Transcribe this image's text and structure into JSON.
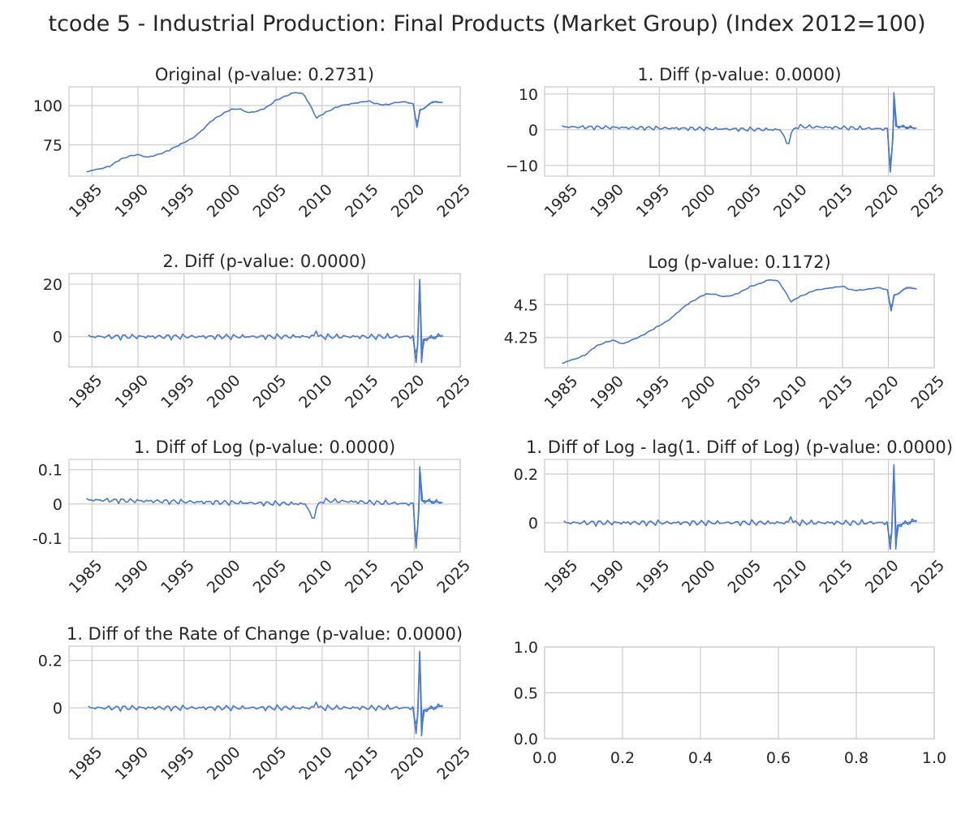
{
  "figure": {
    "title": "tcode 5 - Industrial Production: Final Products (Market Group) (Index 2012=100)",
    "line_color": "#4878cf",
    "grid_color": "#cccccc",
    "spine_color": "#cccccc"
  },
  "chart_data": [
    {
      "type": "line",
      "title": "Original (p-value: 0.2731)",
      "x_start": 1984.4,
      "x_end": 2023.1,
      "xlim": [
        1982.5,
        2025.0
      ],
      "ylim": [
        55,
        112
      ],
      "xticks": [
        1985,
        1990,
        1995,
        2000,
        2005,
        2010,
        2015,
        2020,
        2025
      ],
      "yticks": [
        75,
        100
      ],
      "keypoints": [
        [
          1984.4,
          57.5
        ],
        [
          1985.0,
          58.8
        ],
        [
          1986.0,
          59.8
        ],
        [
          1987.0,
          61.5
        ],
        [
          1988.0,
          65.5
        ],
        [
          1989.0,
          67.7
        ],
        [
          1990.0,
          68.8
        ],
        [
          1991.0,
          67.0
        ],
        [
          1992.0,
          68.5
        ],
        [
          1993.0,
          70.5
        ],
        [
          1994.0,
          73.5
        ],
        [
          1995.0,
          76.5
        ],
        [
          1996.0,
          79.5
        ],
        [
          1997.0,
          84.5
        ],
        [
          1998.0,
          90.5
        ],
        [
          1999.0,
          94.0
        ],
        [
          2000.0,
          97.5
        ],
        [
          2001.0,
          98.0
        ],
        [
          2002.0,
          95.5
        ],
        [
          2003.0,
          96.5
        ],
        [
          2004.0,
          99.0
        ],
        [
          2005.0,
          103.5
        ],
        [
          2006.0,
          106.0
        ],
        [
          2007.0,
          108.5
        ],
        [
          2008.0,
          107.5
        ],
        [
          2008.9,
          98.0
        ],
        [
          2009.4,
          92.0
        ],
        [
          2010.0,
          94.5
        ],
        [
          2011.0,
          97.5
        ],
        [
          2012.0,
          100.0
        ],
        [
          2013.0,
          101.0
        ],
        [
          2014.0,
          102.0
        ],
        [
          2015.0,
          103.0
        ],
        [
          2016.0,
          101.0
        ],
        [
          2017.0,
          100.5
        ],
        [
          2018.0,
          102.0
        ],
        [
          2019.0,
          102.5
        ],
        [
          2019.9,
          101.0
        ],
        [
          2020.3,
          86.0
        ],
        [
          2020.6,
          97.0
        ],
        [
          2021.0,
          98.0
        ],
        [
          2022.0,
          102.5
        ],
        [
          2023.1,
          102.0
        ]
      ],
      "noise": 0.4
    },
    {
      "type": "line",
      "title": "1. Diff (p-value: 0.0000)",
      "x_start": 1984.4,
      "x_end": 2023.1,
      "xlim": [
        1982.5,
        2025.0
      ],
      "ylim": [
        -13,
        12
      ],
      "xticks": [
        1985,
        1990,
        1995,
        2000,
        2005,
        2010,
        2015,
        2020,
        2025
      ],
      "yticks": [
        -10,
        0,
        10
      ],
      "keypoints": [
        [
          1984.4,
          0.8
        ],
        [
          2008.3,
          0.0
        ],
        [
          2008.7,
          -2.5
        ],
        [
          2009.0,
          -4.8
        ],
        [
          2009.4,
          -1.0
        ],
        [
          2010.0,
          0.9
        ],
        [
          2019.9,
          0.2
        ],
        [
          2020.2,
          -12.0
        ],
        [
          2020.5,
          -2.0
        ],
        [
          2020.6,
          10.5
        ],
        [
          2020.8,
          1.0
        ],
        [
          2023.1,
          0.4
        ]
      ],
      "noise": 0.55
    },
    {
      "type": "line",
      "title": "2. Diff (p-value: 0.0000)",
      "x_start": 1984.6,
      "x_end": 2023.1,
      "xlim": [
        1982.5,
        2025.0
      ],
      "ylim": [
        -11.5,
        24
      ],
      "xticks": [
        1985,
        1990,
        1995,
        2000,
        2005,
        2010,
        2015,
        2020,
        2025
      ],
      "yticks": [
        0,
        20
      ],
      "keypoints": [
        [
          1984.6,
          0.0
        ],
        [
          2009.2,
          0.0
        ],
        [
          2009.4,
          4.0
        ],
        [
          2009.6,
          0.0
        ],
        [
          2019.9,
          0.0
        ],
        [
          2020.2,
          -10.0
        ],
        [
          2020.4,
          -2.0
        ],
        [
          2020.6,
          22.0
        ],
        [
          2020.8,
          -10.0
        ],
        [
          2021.0,
          -1.0
        ],
        [
          2023.1,
          0.5
        ]
      ],
      "noise": 1.0
    },
    {
      "type": "line",
      "title": "Log (p-value: 0.1172)",
      "x_start": 1984.4,
      "x_end": 2023.1,
      "xlim": [
        1982.5,
        2025.0
      ],
      "ylim": [
        4.02,
        4.73
      ],
      "xticks": [
        1985,
        1990,
        1995,
        2000,
        2005,
        2010,
        2015,
        2020,
        2025
      ],
      "yticks": [
        4.25,
        4.5
      ],
      "keypoints": [
        [
          1984.4,
          4.05
        ],
        [
          1985.0,
          4.07
        ],
        [
          1986.0,
          4.09
        ],
        [
          1987.0,
          4.12
        ],
        [
          1988.0,
          4.18
        ],
        [
          1989.0,
          4.21
        ],
        [
          1990.0,
          4.23
        ],
        [
          1991.0,
          4.2
        ],
        [
          1992.0,
          4.23
        ],
        [
          1993.0,
          4.26
        ],
        [
          1994.0,
          4.3
        ],
        [
          1995.0,
          4.34
        ],
        [
          1996.0,
          4.38
        ],
        [
          1997.0,
          4.44
        ],
        [
          1998.0,
          4.5
        ],
        [
          1999.0,
          4.54
        ],
        [
          2000.0,
          4.58
        ],
        [
          2001.0,
          4.58
        ],
        [
          2002.0,
          4.56
        ],
        [
          2003.0,
          4.57
        ],
        [
          2004.0,
          4.6
        ],
        [
          2005.0,
          4.64
        ],
        [
          2006.0,
          4.66
        ],
        [
          2007.0,
          4.69
        ],
        [
          2008.0,
          4.68
        ],
        [
          2008.9,
          4.58
        ],
        [
          2009.4,
          4.52
        ],
        [
          2010.0,
          4.55
        ],
        [
          2011.0,
          4.58
        ],
        [
          2012.0,
          4.61
        ],
        [
          2013.0,
          4.62
        ],
        [
          2014.0,
          4.63
        ],
        [
          2015.0,
          4.64
        ],
        [
          2016.0,
          4.61
        ],
        [
          2017.0,
          4.61
        ],
        [
          2018.0,
          4.62
        ],
        [
          2019.0,
          4.63
        ],
        [
          2019.9,
          4.61
        ],
        [
          2020.3,
          4.45
        ],
        [
          2020.6,
          4.57
        ],
        [
          2021.0,
          4.58
        ],
        [
          2022.0,
          4.63
        ],
        [
          2023.1,
          4.62
        ]
      ],
      "noise": 0.004
    },
    {
      "type": "line",
      "title": "1. Diff of Log (p-value: 0.0000)",
      "x_start": 1984.4,
      "x_end": 2023.1,
      "xlim": [
        1982.5,
        2025.0
      ],
      "ylim": [
        -0.14,
        0.13
      ],
      "xticks": [
        1985,
        1990,
        1995,
        2000,
        2005,
        2010,
        2015,
        2020,
        2025
      ],
      "yticks": [
        -0.1,
        0.0,
        0.1
      ],
      "keypoints": [
        [
          1984.4,
          0.012
        ],
        [
          2008.3,
          0.0
        ],
        [
          2008.7,
          -0.03
        ],
        [
          2009.0,
          -0.05
        ],
        [
          2009.4,
          -0.01
        ],
        [
          2010.0,
          0.01
        ],
        [
          2019.9,
          0.0
        ],
        [
          2020.2,
          -0.13
        ],
        [
          2020.5,
          -0.02
        ],
        [
          2020.6,
          0.11
        ],
        [
          2020.8,
          0.01
        ],
        [
          2023.1,
          0.004
        ]
      ],
      "noise": 0.007
    },
    {
      "type": "line",
      "title": "1. Diff of Log - lag(1. Diff of Log) (p-value: 0.0000)",
      "x_start": 1984.6,
      "x_end": 2023.1,
      "xlim": [
        1982.5,
        2025.0
      ],
      "ylim": [
        -0.12,
        0.26
      ],
      "xticks": [
        1985,
        1990,
        1995,
        2000,
        2005,
        2010,
        2015,
        2020,
        2025
      ],
      "yticks": [
        0.0,
        0.2
      ],
      "keypoints": [
        [
          1984.6,
          0.0
        ],
        [
          2009.2,
          0.0
        ],
        [
          2009.4,
          0.045
        ],
        [
          2009.6,
          0.0
        ],
        [
          2019.9,
          0.0
        ],
        [
          2020.2,
          -0.11
        ],
        [
          2020.4,
          -0.02
        ],
        [
          2020.6,
          0.24
        ],
        [
          2020.8,
          -0.11
        ],
        [
          2021.0,
          -0.01
        ],
        [
          2023.1,
          0.01
        ]
      ],
      "noise": 0.011
    },
    {
      "type": "line",
      "title": "1. Diff of the Rate of Change (p-value: 0.0000)",
      "x_start": 1984.6,
      "x_end": 2023.1,
      "xlim": [
        1982.5,
        2025.0
      ],
      "ylim": [
        -0.13,
        0.26
      ],
      "xticks": [
        1985,
        1990,
        1995,
        2000,
        2005,
        2010,
        2015,
        2020,
        2025
      ],
      "yticks": [
        0.0,
        0.2
      ],
      "keypoints": [
        [
          1984.6,
          0.0
        ],
        [
          2009.2,
          0.0
        ],
        [
          2009.4,
          0.045
        ],
        [
          2009.6,
          0.0
        ],
        [
          2019.9,
          0.0
        ],
        [
          2020.2,
          -0.11
        ],
        [
          2020.4,
          -0.02
        ],
        [
          2020.6,
          0.24
        ],
        [
          2020.8,
          -0.12
        ],
        [
          2021.0,
          -0.01
        ],
        [
          2023.1,
          0.01
        ]
      ],
      "noise": 0.011
    },
    {
      "type": "line",
      "title": "",
      "empty": true,
      "xlim": [
        0.0,
        1.0
      ],
      "ylim": [
        0.0,
        1.0
      ],
      "xticks": [
        0.0,
        0.2,
        0.4,
        0.6,
        0.8,
        1.0
      ],
      "yticks": [
        0.0,
        0.5,
        1.0
      ],
      "tick_format": 1
    }
  ]
}
